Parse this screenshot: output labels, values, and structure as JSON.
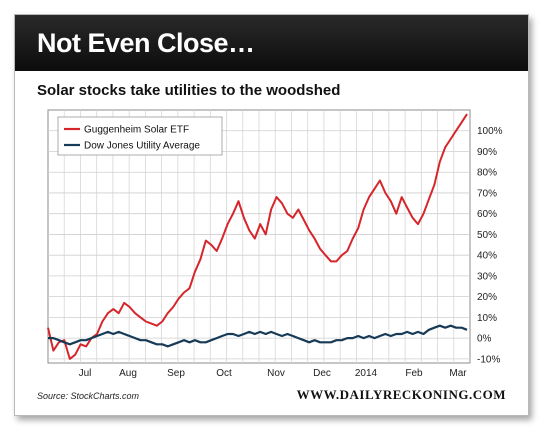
{
  "header": {
    "title": "Not Even Close…"
  },
  "footer": {
    "source": "Source: StockCharts.com",
    "brand": "WWW.DAILYRECKONING.COM"
  },
  "colors": {
    "header_bg": "#151515",
    "solar": "#d6262b",
    "utility": "#173a57",
    "grid": "#cfcfcf"
  },
  "chart_data": {
    "type": "line",
    "title": "Solar stocks take utilities to the woodshed",
    "x_axis": {
      "tick_labels": [
        "Jul",
        "Aug",
        "Sep",
        "Oct",
        "Nov",
        "Dec",
        "2014",
        "Feb",
        "Mar"
      ]
    },
    "y_axis": {
      "ticks": [
        -10,
        0,
        10,
        20,
        30,
        40,
        50,
        60,
        70,
        80,
        90,
        100
      ],
      "unit": "%",
      "range": [
        -12,
        110
      ]
    },
    "grid": true,
    "legend_position": "top-left",
    "series": [
      {
        "name": "Guggenheim Solar ETF",
        "color": "#d6262b",
        "points": [
          [
            0,
            5
          ],
          [
            1,
            -6
          ],
          [
            2,
            -2
          ],
          [
            3,
            -1
          ],
          [
            4,
            -10
          ],
          [
            5,
            -8
          ],
          [
            6,
            -3
          ],
          [
            7,
            -4
          ],
          [
            8,
            0
          ],
          [
            9,
            2
          ],
          [
            10,
            8
          ],
          [
            11,
            12
          ],
          [
            12,
            14
          ],
          [
            13,
            12
          ],
          [
            14,
            17
          ],
          [
            15,
            15
          ],
          [
            16,
            12
          ],
          [
            17,
            10
          ],
          [
            18,
            8
          ],
          [
            19,
            7
          ],
          [
            20,
            6
          ],
          [
            21,
            8
          ],
          [
            22,
            12
          ],
          [
            23,
            15
          ],
          [
            24,
            19
          ],
          [
            25,
            22
          ],
          [
            26,
            24
          ],
          [
            27,
            32
          ],
          [
            28,
            38
          ],
          [
            29,
            47
          ],
          [
            30,
            45
          ],
          [
            31,
            42
          ],
          [
            32,
            48
          ],
          [
            33,
            55
          ],
          [
            34,
            60
          ],
          [
            35,
            66
          ],
          [
            36,
            58
          ],
          [
            37,
            52
          ],
          [
            38,
            48
          ],
          [
            39,
            55
          ],
          [
            40,
            50
          ],
          [
            41,
            62
          ],
          [
            42,
            68
          ],
          [
            43,
            65
          ],
          [
            44,
            60
          ],
          [
            45,
            58
          ],
          [
            46,
            62
          ],
          [
            47,
            57
          ],
          [
            48,
            52
          ],
          [
            49,
            48
          ],
          [
            50,
            43
          ],
          [
            51,
            40
          ],
          [
            52,
            37
          ],
          [
            53,
            37
          ],
          [
            54,
            40
          ],
          [
            55,
            42
          ],
          [
            56,
            48
          ],
          [
            57,
            53
          ],
          [
            58,
            62
          ],
          [
            59,
            68
          ],
          [
            60,
            72
          ],
          [
            61,
            76
          ],
          [
            62,
            70
          ],
          [
            63,
            66
          ],
          [
            64,
            60
          ],
          [
            65,
            68
          ],
          [
            66,
            63
          ],
          [
            67,
            58
          ],
          [
            68,
            55
          ],
          [
            69,
            60
          ],
          [
            70,
            67
          ],
          [
            71,
            74
          ],
          [
            72,
            85
          ],
          [
            73,
            92
          ],
          [
            74,
            96
          ],
          [
            75,
            100
          ],
          [
            76,
            104
          ],
          [
            77,
            108
          ]
        ]
      },
      {
        "name": "Dow Jones Utility Average",
        "color": "#173a57",
        "points": [
          [
            0,
            0
          ],
          [
            1,
            0
          ],
          [
            2,
            -1
          ],
          [
            3,
            -2
          ],
          [
            4,
            -3
          ],
          [
            5,
            -2
          ],
          [
            6,
            -1
          ],
          [
            7,
            -1
          ],
          [
            8,
            0
          ],
          [
            9,
            1
          ],
          [
            10,
            2
          ],
          [
            11,
            3
          ],
          [
            12,
            2
          ],
          [
            13,
            3
          ],
          [
            14,
            2
          ],
          [
            15,
            1
          ],
          [
            16,
            0
          ],
          [
            17,
            -1
          ],
          [
            18,
            -1
          ],
          [
            19,
            -2
          ],
          [
            20,
            -3
          ],
          [
            21,
            -3
          ],
          [
            22,
            -4
          ],
          [
            23,
            -3
          ],
          [
            24,
            -2
          ],
          [
            25,
            -1
          ],
          [
            26,
            -2
          ],
          [
            27,
            -1
          ],
          [
            28,
            -2
          ],
          [
            29,
            -2
          ],
          [
            30,
            -1
          ],
          [
            31,
            0
          ],
          [
            32,
            1
          ],
          [
            33,
            2
          ],
          [
            34,
            2
          ],
          [
            35,
            1
          ],
          [
            36,
            2
          ],
          [
            37,
            3
          ],
          [
            38,
            2
          ],
          [
            39,
            3
          ],
          [
            40,
            2
          ],
          [
            41,
            3
          ],
          [
            42,
            2
          ],
          [
            43,
            1
          ],
          [
            44,
            2
          ],
          [
            45,
            1
          ],
          [
            46,
            0
          ],
          [
            47,
            -1
          ],
          [
            48,
            -2
          ],
          [
            49,
            -1
          ],
          [
            50,
            -2
          ],
          [
            51,
            -2
          ],
          [
            52,
            -2
          ],
          [
            53,
            -1
          ],
          [
            54,
            -1
          ],
          [
            55,
            0
          ],
          [
            56,
            0
          ],
          [
            57,
            1
          ],
          [
            58,
            0
          ],
          [
            59,
            1
          ],
          [
            60,
            0
          ],
          [
            61,
            1
          ],
          [
            62,
            2
          ],
          [
            63,
            1
          ],
          [
            64,
            2
          ],
          [
            65,
            2
          ],
          [
            66,
            3
          ],
          [
            67,
            2
          ],
          [
            68,
            3
          ],
          [
            69,
            2
          ],
          [
            70,
            4
          ],
          [
            71,
            5
          ],
          [
            72,
            6
          ],
          [
            73,
            5
          ],
          [
            74,
            6
          ],
          [
            75,
            5
          ],
          [
            76,
            5
          ],
          [
            77,
            4
          ]
        ]
      }
    ]
  }
}
